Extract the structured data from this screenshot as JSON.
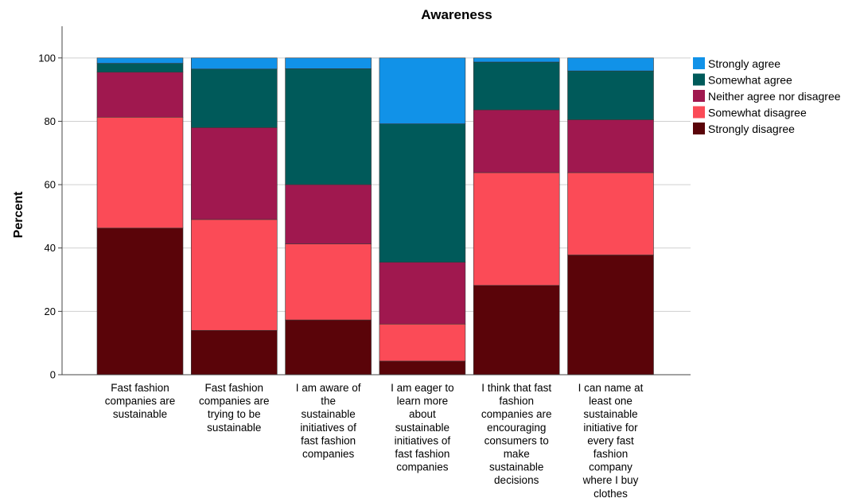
{
  "chart_data": {
    "type": "bar",
    "stacked": true,
    "title": "Awareness",
    "xlabel": "",
    "ylabel": "Percent",
    "ylim": [
      0,
      110
    ],
    "yticks": [
      0,
      20,
      40,
      60,
      80,
      100
    ],
    "grid": "horizontal",
    "legend_position": "right",
    "categories": [
      [
        "Fast fashion",
        "companies are",
        "sustainable"
      ],
      [
        "Fast fashion",
        "companies are",
        "trying to be",
        "sustainable"
      ],
      [
        "I am aware of",
        "the",
        "sustainable",
        "initiatives of",
        "fast fashion",
        "companies"
      ],
      [
        "I am eager to",
        "learn more",
        "about",
        "sustainable",
        "initiatives of",
        "fast fashion",
        "companies"
      ],
      [
        "I think that fast",
        "fashion",
        "companies are",
        "encouraging",
        "consumers to",
        "make",
        "sustainable",
        "decisions"
      ],
      [
        "I can name at",
        "least one",
        "sustainable",
        "initiative for",
        "every fast",
        "fashion",
        "company",
        "where I buy",
        "clothes"
      ]
    ],
    "series": [
      {
        "name": "Strongly disagree",
        "color": "#5a0409",
        "values": [
          46.3,
          14.0,
          17.3,
          4.3,
          28.2,
          37.8
        ]
      },
      {
        "name": "Somewhat disagree",
        "color": "#fb4b57",
        "values": [
          35.0,
          35.0,
          24.0,
          11.7,
          35.6,
          26.0
        ]
      },
      {
        "name": "Neither agree nor disagree",
        "color": "#a0184f",
        "values": [
          14.2,
          29.0,
          18.7,
          19.5,
          19.8,
          16.7
        ]
      },
      {
        "name": "Somewhat agree",
        "color": "#005a5a",
        "values": [
          2.8,
          18.5,
          36.6,
          43.7,
          15.1,
          15.4
        ]
      },
      {
        "name": "Strongly agree",
        "color": "#1192e8",
        "values": [
          1.7,
          3.5,
          3.4,
          20.8,
          1.3,
          4.1
        ]
      }
    ]
  }
}
